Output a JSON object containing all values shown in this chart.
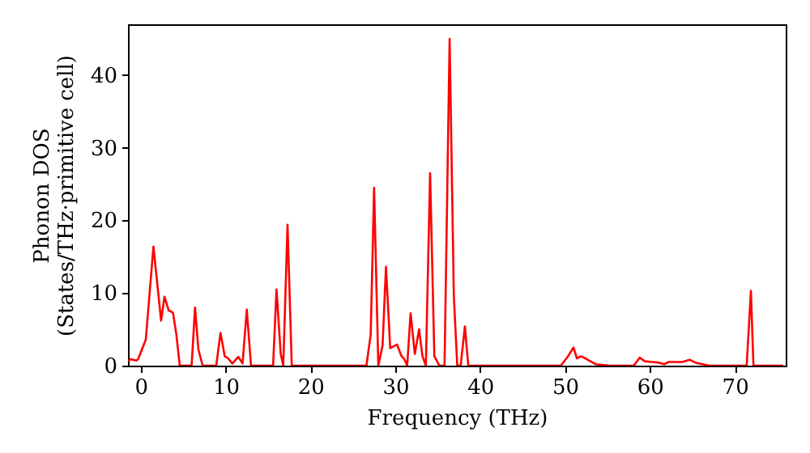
{
  "chart_data": {
    "type": "line",
    "xlabel": "Frequency (THz)",
    "ylabel": "Phonon DOS\n(States/THz·primitive cell)",
    "xlim": [
      -1.5,
      76
    ],
    "ylim": [
      0,
      47
    ],
    "xticks": [
      0,
      10,
      20,
      30,
      40,
      50,
      60,
      70
    ],
    "yticks": [
      0,
      10,
      20,
      30,
      40
    ],
    "grid": false,
    "marker": "none",
    "line_style": "solid",
    "series": [
      {
        "color": "#ff0000",
        "x": [
          -1.5,
          -1.2,
          -0.5,
          -0.3,
          0.6,
          1.5,
          2.4,
          2.8,
          3.3,
          3.8,
          4.2,
          4.6,
          6.0,
          6.4,
          6.8,
          7.3,
          8.9,
          9.4,
          9.9,
          10.3,
          10.8,
          11.5,
          12.0,
          12.5,
          13.0,
          15.6,
          16.0,
          16.5,
          16.8,
          17.3,
          17.8,
          26.6,
          27.1,
          27.5,
          28.0,
          28.5,
          28.9,
          29.4,
          29.7,
          30.2,
          30.7,
          31.1,
          31.4,
          31.8,
          32.3,
          32.8,
          33.2,
          33.6,
          34.1,
          34.6,
          35.2,
          35.8,
          36.4,
          36.9,
          37.3,
          37.7,
          38.2,
          38.6,
          49.5,
          50.3,
          51.0,
          51.4,
          51.9,
          52.7,
          53.6,
          55.2,
          58.1,
          58.8,
          59.4,
          60.3,
          61.1,
          61.7,
          62.2,
          63.8,
          64.7,
          65.4,
          67.0,
          71.4,
          71.9,
          72.2,
          75.7
        ],
        "values": [
          0.6,
          0.9,
          0.7,
          0.9,
          3.6,
          16.4,
          6.2,
          9.5,
          7.6,
          7.3,
          4.3,
          0,
          0,
          8.0,
          2.2,
          0,
          0,
          4.5,
          1.3,
          1.0,
          0.3,
          1.2,
          0.3,
          7.7,
          0,
          0,
          10.5,
          1.6,
          0,
          19.4,
          0,
          0,
          4.3,
          24.5,
          0,
          2.8,
          13.6,
          2.4,
          2.6,
          2.9,
          1.4,
          0.8,
          0,
          7.2,
          1.6,
          5.0,
          1.3,
          0,
          26.5,
          1.3,
          0,
          0,
          45.0,
          9.5,
          0,
          0,
          5.4,
          0,
          0,
          1.2,
          2.5,
          1.0,
          1.3,
          0.8,
          0.2,
          0,
          0,
          1.1,
          0.6,
          0.5,
          0.4,
          0.2,
          0.5,
          0.5,
          0.8,
          0.4,
          0,
          0,
          10.3,
          0,
          0
        ]
      }
    ]
  }
}
